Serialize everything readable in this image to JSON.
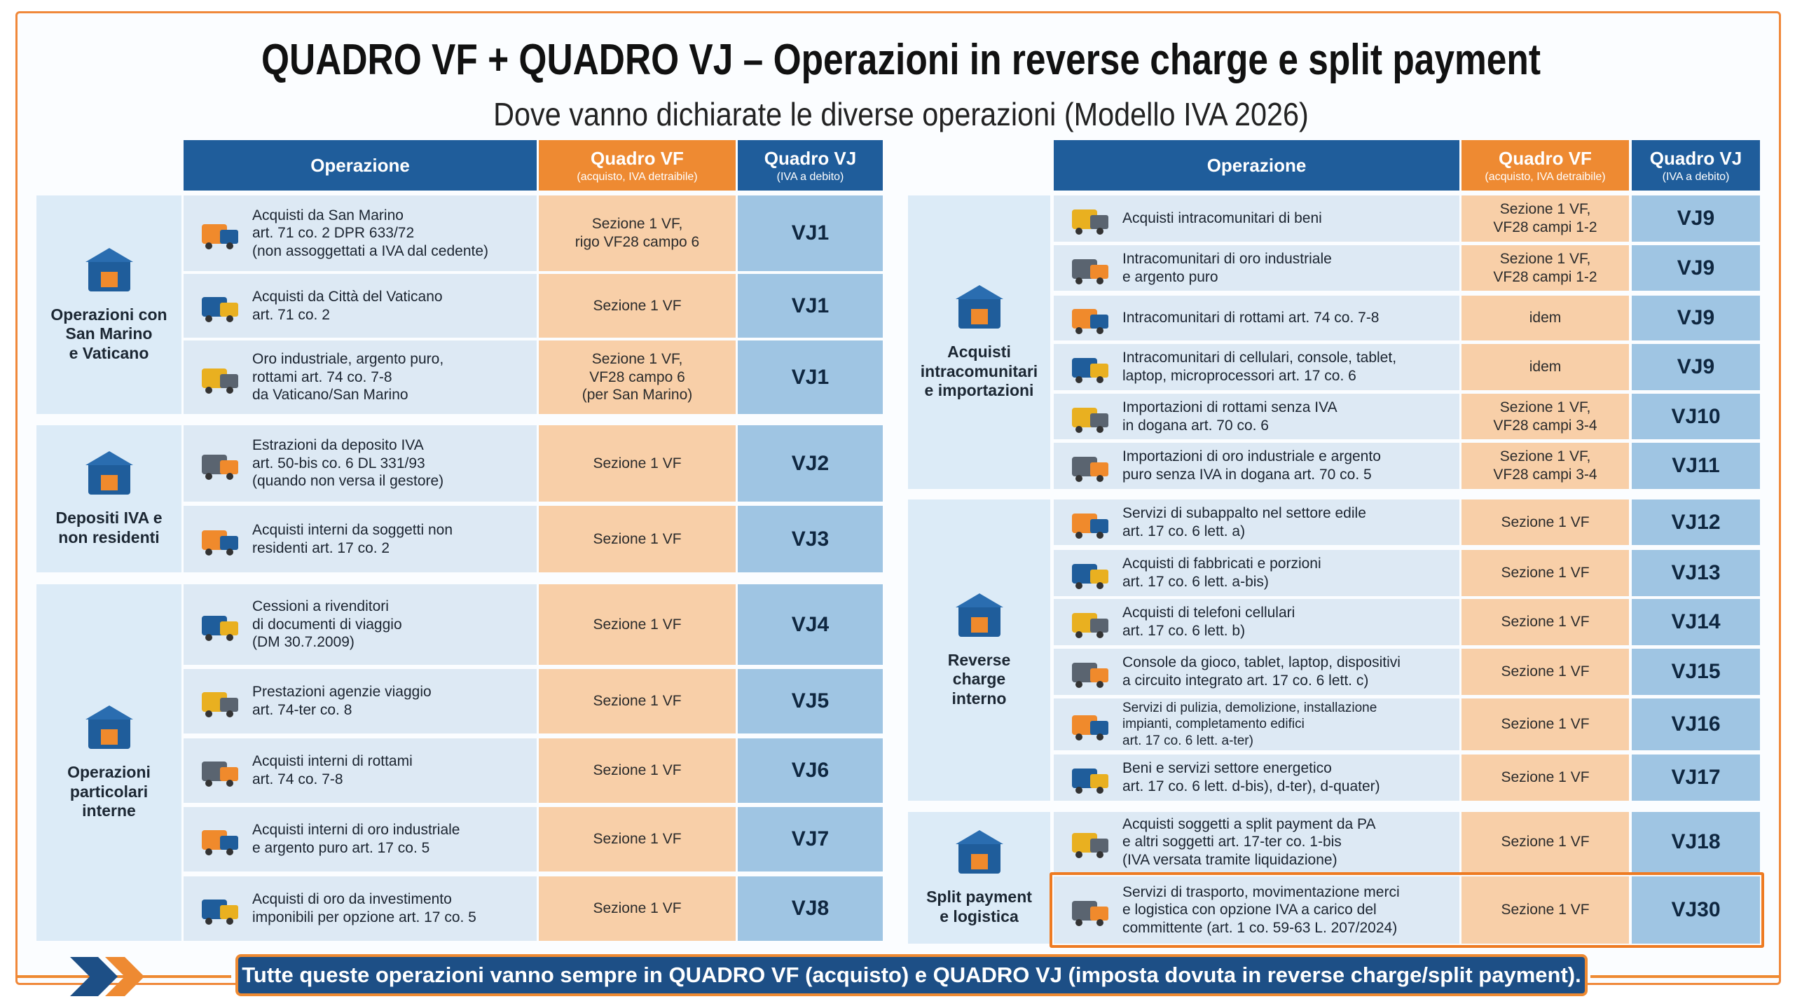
{
  "header": {
    "title": "QUADRO VF + QUADRO VJ – Operazioni in reverse charge e split payment",
    "subtitle": "Dove vanno dichiarate le diverse operazioni (Modello IVA 2026)"
  },
  "tables": [
    {
      "columns": [
        {
          "label": "Operazione"
        },
        {
          "label": "Quadro VF",
          "sublabel": "(acquisto, IVA detraibile)"
        },
        {
          "label": "Quadro VJ",
          "sublabel": "(IVA a debito)"
        }
      ],
      "groups": [
        {
          "label": [
            "Operazioni con",
            "San Marino",
            "e Vaticano"
          ],
          "rows": [
            {
              "operation": [
                "Acquisti da San Marino",
                "art. 71 co. 2 DPR 633/72",
                "(non assoggettati a IVA dal cedente)"
              ],
              "vf": [
                "Sezione 1 VF,",
                "rigo VF28 campo 6"
              ],
              "vj": "VJ1"
            },
            {
              "operation": [
                "Acquisti da Città del Vaticano",
                "art. 71 co. 2"
              ],
              "vf": [
                "Sezione 1 VF"
              ],
              "vj": "VJ1"
            },
            {
              "operation": [
                "Oro industriale, argento puro,",
                "rottami art. 74 co. 7-8",
                "da Vaticano/San Marino"
              ],
              "vf": [
                "Sezione 1 VF,",
                "VF28 campo 6",
                "(per San Marino)"
              ],
              "vj": "VJ1"
            }
          ]
        },
        {
          "label": [
            "Depositi IVA e",
            "non residenti"
          ],
          "rows": [
            {
              "operation": [
                "Estrazioni da deposito IVA",
                "art. 50-bis co. 6 DL 331/93",
                "(quando non versa il gestore)"
              ],
              "vf": [
                "Sezione 1 VF"
              ],
              "vj": "VJ2"
            },
            {
              "operation": [
                "Acquisti interni da soggetti non",
                "residenti art. 17 co. 2"
              ],
              "vf": [
                "Sezione 1 VF"
              ],
              "vj": "VJ3"
            }
          ]
        },
        {
          "label": [
            "Operazioni",
            "particolari",
            "interne"
          ],
          "rows": [
            {
              "operation": [
                "Cessioni a rivenditori",
                "di documenti di viaggio",
                "(DM 30.7.2009)"
              ],
              "vf": [
                "Sezione 1 VF"
              ],
              "vj": "VJ4"
            },
            {
              "operation": [
                "Prestazioni agenzie viaggio",
                "art. 74-ter co. 8"
              ],
              "vf": [
                "Sezione 1 VF"
              ],
              "vj": "VJ5"
            },
            {
              "operation": [
                "Acquisti interni di rottami",
                "art. 74 co. 7-8"
              ],
              "vf": [
                "Sezione 1 VF"
              ],
              "vj": "VJ6"
            },
            {
              "operation": [
                "Acquisti interni di oro industriale",
                "e argento puro art. 17 co. 5"
              ],
              "vf": [
                "Sezione 1 VF"
              ],
              "vj": "VJ7"
            },
            {
              "operation": [
                "Acquisti di oro da investimento",
                "imponibili per opzione art. 17 co. 5"
              ],
              "vf": [
                "Sezione 1 VF"
              ],
              "vj": "VJ8"
            }
          ]
        }
      ]
    },
    {
      "columns": [
        {
          "label": "Operazione"
        },
        {
          "label": "Quadro VF",
          "sublabel": "(acquisto, IVA detraibile)"
        },
        {
          "label": "Quadro VJ",
          "sublabel": "(IVA a debito)"
        }
      ],
      "groups": [
        {
          "label": [
            "Acquisti",
            "intracomunitari",
            "e importazioni"
          ],
          "rows": [
            {
              "operation": [
                "Acquisti intracomunitari di beni"
              ],
              "vf": [
                "Sezione 1 VF,",
                "VF28 campi 1-2"
              ],
              "vj": "VJ9"
            },
            {
              "operation": [
                "Intracomunitari di oro industriale",
                "e argento puro"
              ],
              "vf": [
                "Sezione 1 VF,",
                "VF28 campi 1-2"
              ],
              "vj": "VJ9"
            },
            {
              "operation": [
                "Intracomunitari di rottami art. 74 co. 7-8"
              ],
              "vf": [
                "idem"
              ],
              "vj": "VJ9"
            },
            {
              "operation": [
                "Intracomunitari di cellulari, console, tablet,",
                "laptop, microprocessori art. 17 co. 6"
              ],
              "vf": [
                "idem"
              ],
              "vj": "VJ9"
            },
            {
              "operation": [
                "Importazioni di rottami senza IVA",
                "in dogana art. 70 co. 6"
              ],
              "vf": [
                "Sezione 1 VF,",
                "VF28 campi 3-4"
              ],
              "vj": "VJ10"
            },
            {
              "operation": [
                "Importazioni di oro industriale e argento",
                "puro senza IVA in dogana art. 70 co. 5"
              ],
              "vf": [
                "Sezione 1 VF,",
                "VF28 campi 3-4"
              ],
              "vj": "VJ11"
            }
          ]
        },
        {
          "label": [
            "Reverse",
            "charge",
            "interno"
          ],
          "rows": [
            {
              "operation": [
                "Servizi di subappalto nel settore edile",
                "art. 17 co. 6 lett. a)"
              ],
              "vf": [
                "Sezione 1 VF"
              ],
              "vj": "VJ12"
            },
            {
              "operation": [
                "Acquisti di fabbricati e porzioni",
                "art. 17 co. 6 lett. a-bis)"
              ],
              "vf": [
                "Sezione 1 VF"
              ],
              "vj": "VJ13"
            },
            {
              "operation": [
                "Acquisti di telefoni cellulari",
                "art. 17 co. 6 lett. b)"
              ],
              "vf": [
                "Sezione 1 VF"
              ],
              "vj": "VJ14"
            },
            {
              "operation": [
                "Console da gioco, tablet, laptop, dispositivi",
                "a circuito integrato art. 17 co. 6 lett. c)"
              ],
              "vf": [
                "Sezione 1 VF"
              ],
              "vj": "VJ15"
            },
            {
              "operation": [
                "Servizi di pulizia, demolizione, installazione",
                "impianti, completamento edifici",
                "art. 17 co. 6 lett. a-ter)"
              ],
              "vf": [
                "Sezione 1 VF"
              ],
              "vj": "VJ16"
            },
            {
              "operation": [
                "Beni e servizi settore energetico",
                "art. 17 co. 6 lett. d-bis), d-ter), d-quater)"
              ],
              "vf": [
                "Sezione 1 VF"
              ],
              "vj": "VJ17"
            }
          ]
        },
        {
          "label": [
            "Split payment",
            "e logistica"
          ],
          "rows": [
            {
              "operation": [
                "Acquisti soggetti a split payment da PA",
                "e altri soggetti art. 17-ter co. 1-bis",
                "(IVA versata tramite liquidazione)"
              ],
              "vf": [
                "Sezione 1 VF"
              ],
              "vj": "VJ18"
            },
            {
              "operation": [
                "Servizi di trasporto, movimentazione merci",
                "e logistica con opzione IVA a carico del",
                "committente (art. 1 co. 59-63 L. 207/2024)"
              ],
              "vf": [
                "Sezione 1 VF"
              ],
              "vj": "VJ30"
            }
          ]
        }
      ]
    }
  ],
  "footer": "Tutte queste operazioni vanno sempre in QUADRO VF (acquisto) e QUADRO VJ (imposta dovuta in reverse charge/split payment)."
}
